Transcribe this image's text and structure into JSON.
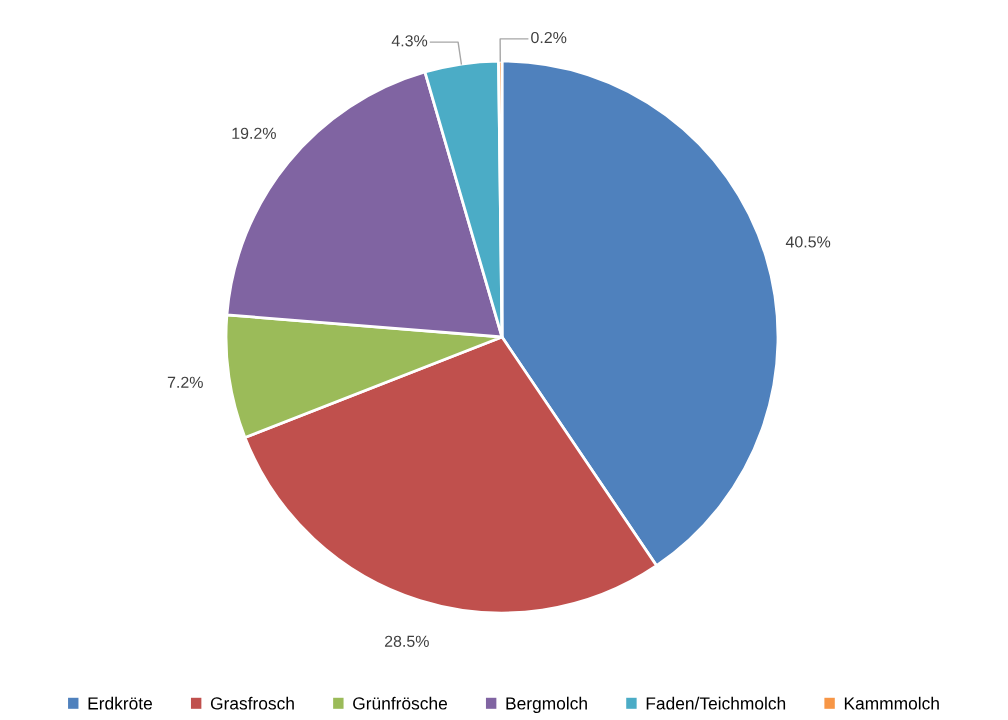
{
  "chart_data": {
    "type": "pie",
    "categories": [
      "Erdkröte",
      "Grasfrosch",
      "Grünfrösche",
      "Bergmolch",
      "Faden/Teichmolch",
      "Kammmolch"
    ],
    "values": [
      40.5,
      28.5,
      7.2,
      19.2,
      4.3,
      0.2
    ],
    "colors": [
      "#4f81bd",
      "#c0504d",
      "#9bbb59",
      "#8064a2",
      "#4bacc6",
      "#f79646"
    ],
    "value_labels": [
      "40.5%",
      "28.5%",
      "7.2%",
      "19.2%",
      "4.3%",
      "0.2%"
    ],
    "legend": "bottom"
  }
}
